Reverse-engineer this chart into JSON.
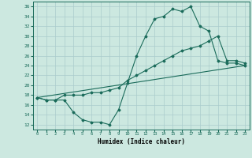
{
  "xlabel": "Humidex (Indice chaleur)",
  "xlim": [
    -0.5,
    23.5
  ],
  "ylim": [
    11,
    37
  ],
  "yticks": [
    12,
    14,
    16,
    18,
    20,
    22,
    24,
    26,
    28,
    30,
    32,
    34,
    36
  ],
  "xticks": [
    0,
    1,
    2,
    3,
    4,
    5,
    6,
    7,
    8,
    9,
    10,
    11,
    12,
    13,
    14,
    15,
    16,
    17,
    18,
    19,
    20,
    21,
    22,
    23
  ],
  "background_color": "#cce8e0",
  "grid_color": "#aacccc",
  "line_color": "#1a6b5a",
  "curve1_x": [
    0,
    1,
    2,
    3,
    4,
    5,
    6,
    7,
    8,
    9,
    10,
    11,
    12,
    13,
    14,
    15,
    16,
    17,
    18,
    19,
    20,
    21,
    22,
    23
  ],
  "curve1_y": [
    17.5,
    17,
    17,
    17,
    14.5,
    13,
    12.5,
    12.5,
    12,
    15,
    20.5,
    26,
    30,
    33.5,
    34,
    35.5,
    35,
    36,
    32,
    31,
    25,
    24.5,
    24.5,
    24
  ],
  "curve2_x": [
    0,
    1,
    2,
    3,
    4,
    5,
    6,
    7,
    8,
    9,
    10,
    11,
    12,
    13,
    14,
    15,
    16,
    17,
    18,
    19,
    20,
    21,
    22,
    23
  ],
  "curve2_y": [
    17.5,
    17,
    17,
    18,
    18,
    18,
    18.5,
    18.5,
    19,
    19.5,
    21,
    22,
    23,
    24,
    25,
    26,
    27,
    27.5,
    28,
    29,
    30,
    25,
    25,
    24.5
  ],
  "curve3_x": [
    0,
    23
  ],
  "curve3_y": [
    17.5,
    24
  ]
}
